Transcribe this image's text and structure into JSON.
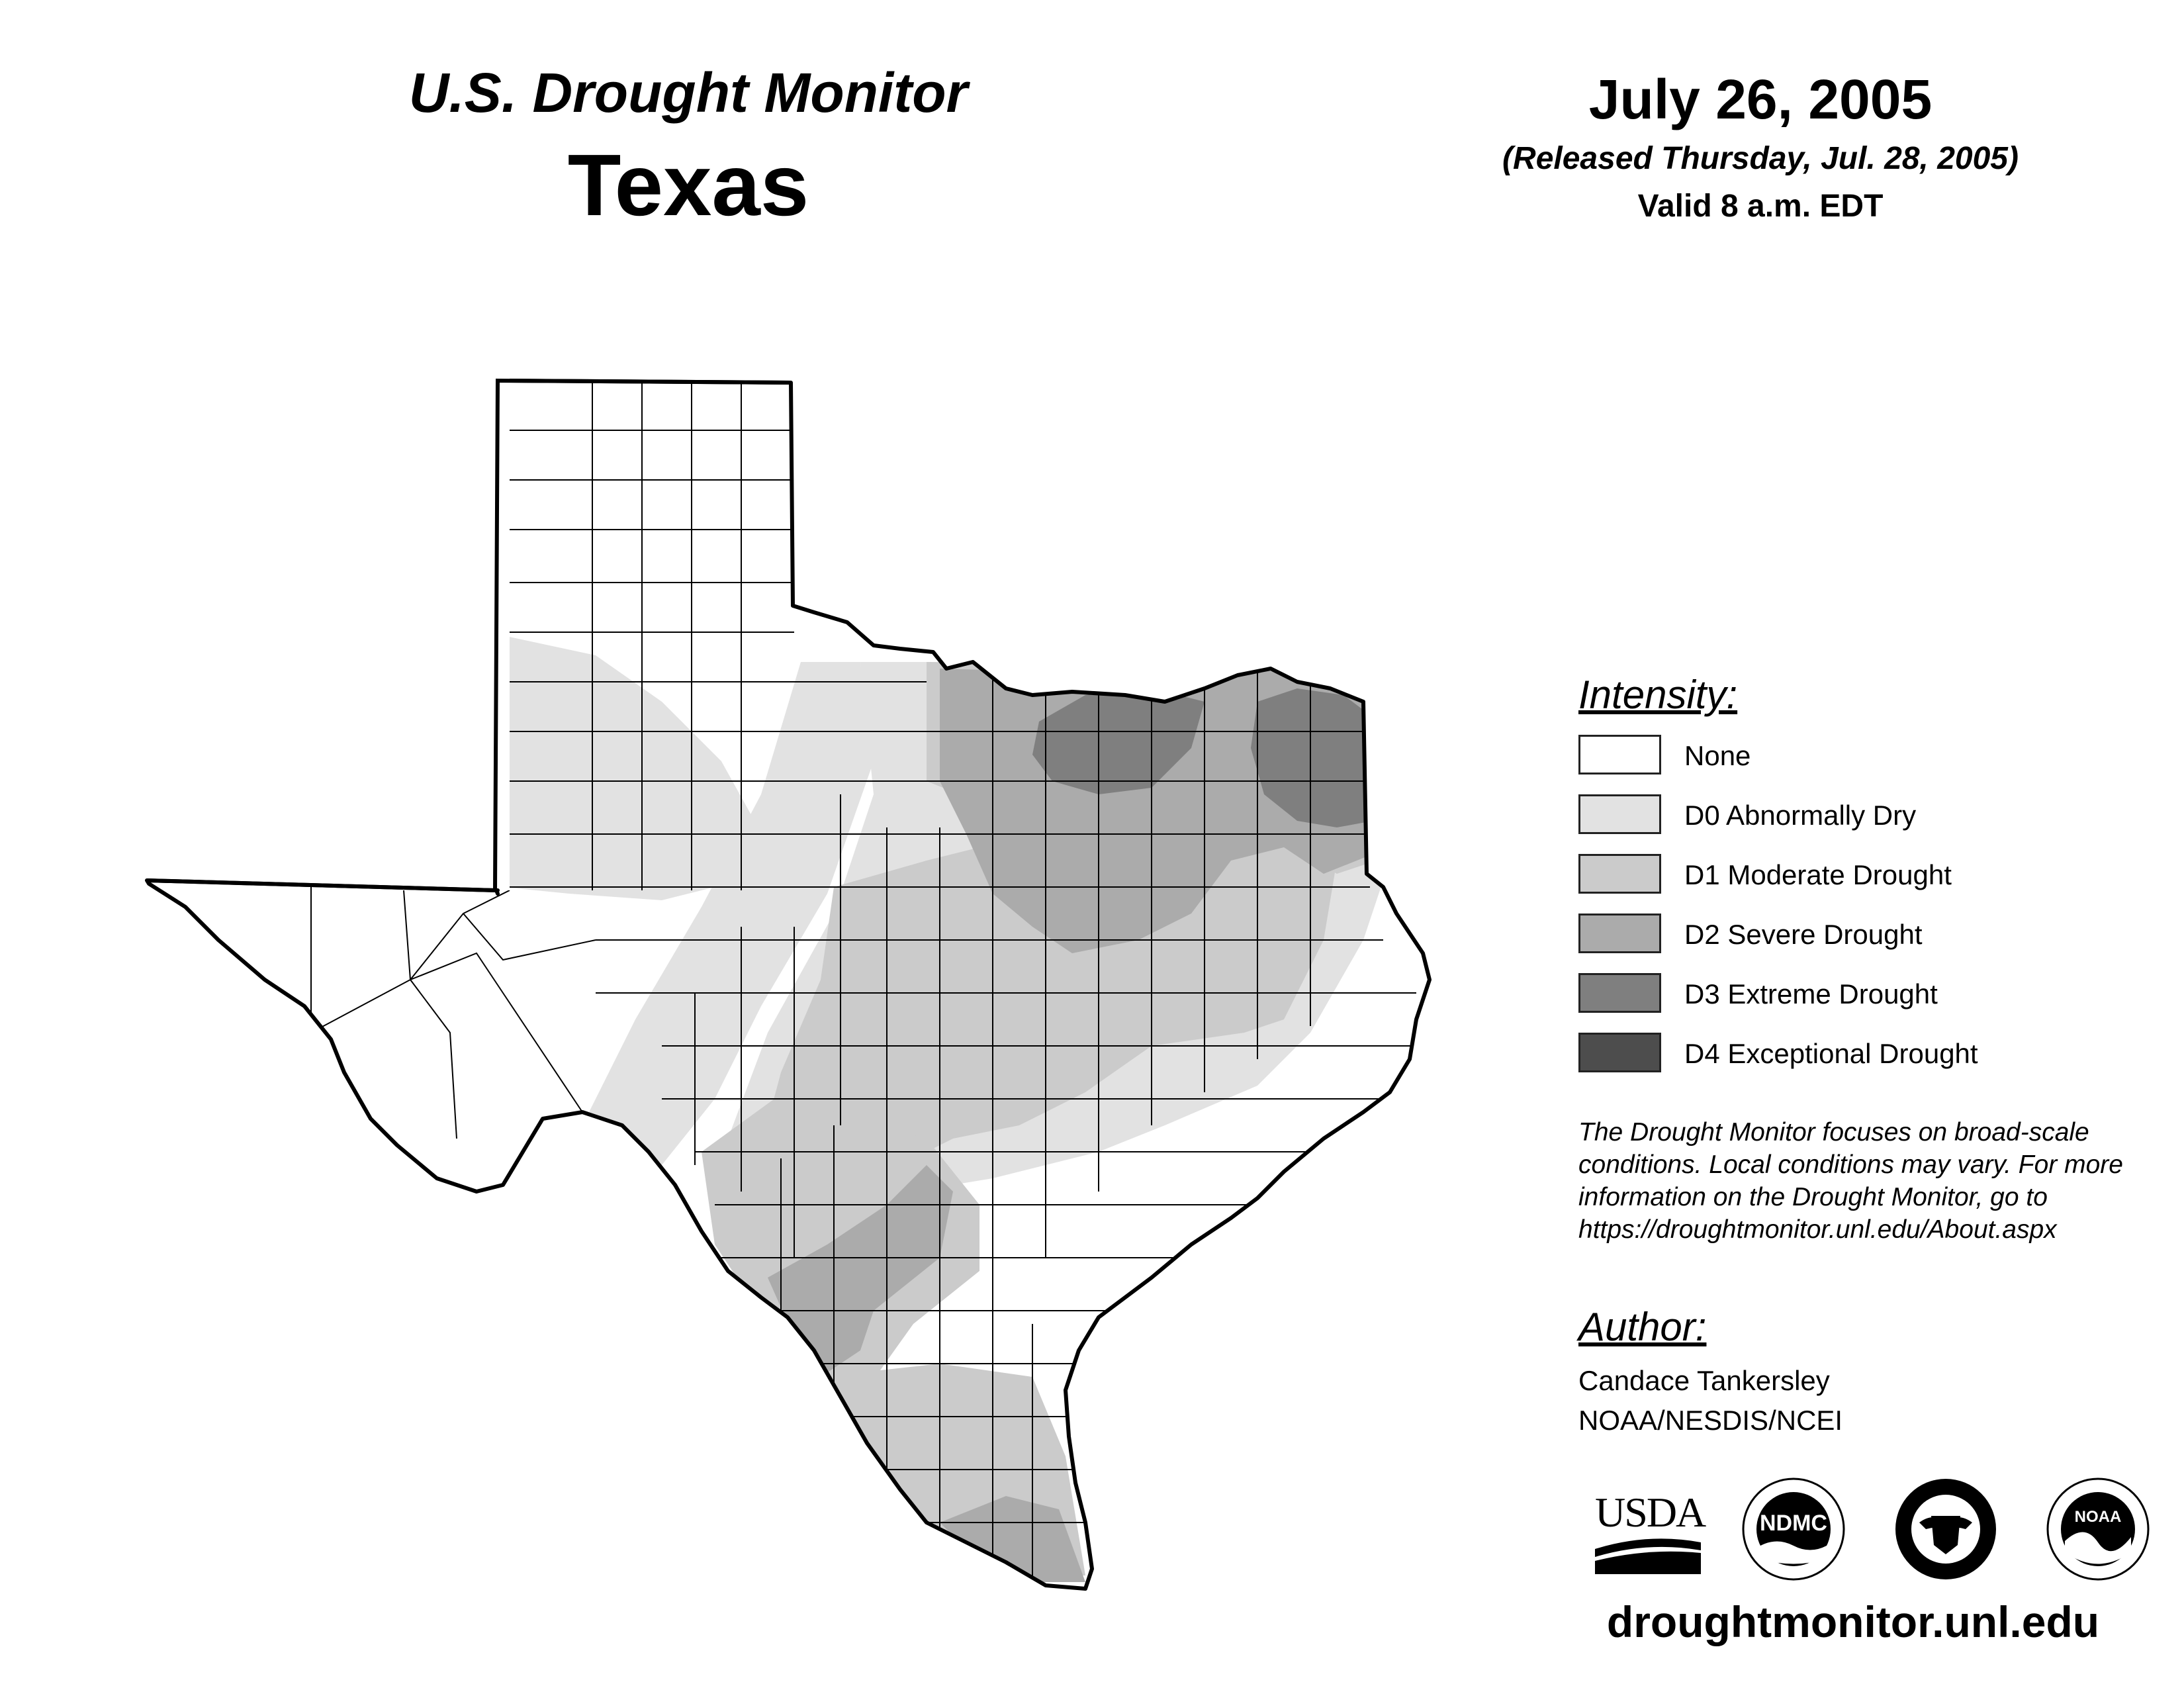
{
  "header": {
    "subtitle": "U.S. Drought Monitor",
    "title": "Texas",
    "date": "July 26, 2005",
    "released": "(Released Thursday, Jul. 28, 2005)",
    "valid": "Valid 8 a.m. EDT"
  },
  "legend": {
    "title": "Intensity:",
    "items": [
      {
        "label": "None",
        "color": "#ffffff"
      },
      {
        "label": "D0 Abnormally Dry",
        "color": "#e2e2e2"
      },
      {
        "label": "D1 Moderate Drought",
        "color": "#cbcbcb"
      },
      {
        "label": "D2 Severe Drought",
        "color": "#ababab"
      },
      {
        "label": "D3 Extreme Drought",
        "color": "#7f7f7f"
      },
      {
        "label": "D4 Exceptional Drought",
        "color": "#4d4d4d"
      }
    ]
  },
  "disclaimer": "The Drought Monitor focuses on broad-scale conditions. Local conditions may vary. For more information on the Drought Monitor, go to https://droughtmonitor.unl.edu/About.aspx",
  "author": {
    "heading": "Author:",
    "name": "Candace Tankersley",
    "organization": "NOAA/NESDIS/NCEI"
  },
  "logos": {
    "usda": "USDA",
    "ndmc": "NDMC",
    "noaa": "NOAA"
  },
  "footer": {
    "url": "droughtmonitor.unl.edu"
  }
}
